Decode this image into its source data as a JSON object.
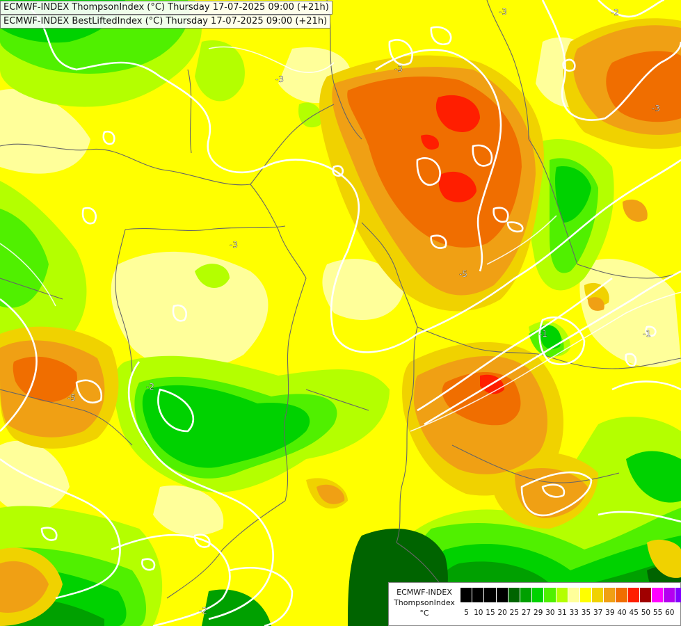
{
  "titles": [
    "ECMWF-INDEX ThompsonIndex (°C) Thursday 17-07-2025 09:00 (+21h)",
    "ECMWF-INDEX BestLiftedIndex (°C) Thursday 17-07-2025 09:00 (+21h)"
  ],
  "legend": {
    "model": "ECMWF-INDEX",
    "variable": "ThompsonIndex",
    "unit": "°C",
    "levels": [
      "5",
      "10",
      "15",
      "20",
      "25",
      "27",
      "29",
      "30",
      "31",
      "33",
      "35",
      "37",
      "39",
      "40",
      "45",
      "50",
      "55",
      "60"
    ],
    "colors": [
      "#000000",
      "#000000",
      "#000000",
      "#000000",
      "#006400",
      "#00a000",
      "#00d200",
      "#50f000",
      "#b4ff00",
      "#ffff9a",
      "#ffff00",
      "#f0d200",
      "#f0a014",
      "#f06e00",
      "#ff1e00",
      "#a00000",
      "#ff00ff",
      "#b400f0",
      "#8200ff",
      "#0000ff"
    ]
  },
  "contour_labels": [
    "-3",
    "-2",
    "-3",
    "-3",
    "-3",
    "-3",
    "-5",
    "-2",
    "-5",
    "-2",
    "-1",
    "-1"
  ],
  "colors": {
    "yellow": "#ffff00",
    "pale_yellow": "#ffff9a",
    "lime": "#b4ff00",
    "light_green": "#50f000",
    "green": "#00d200",
    "mid_green": "#00a000",
    "dark_green": "#006400",
    "gold": "#f0d200",
    "orange": "#f0a014",
    "deep_orange": "#f06e00",
    "red": "#ff1e00",
    "contour": "#ffffff",
    "border": "#666666"
  }
}
